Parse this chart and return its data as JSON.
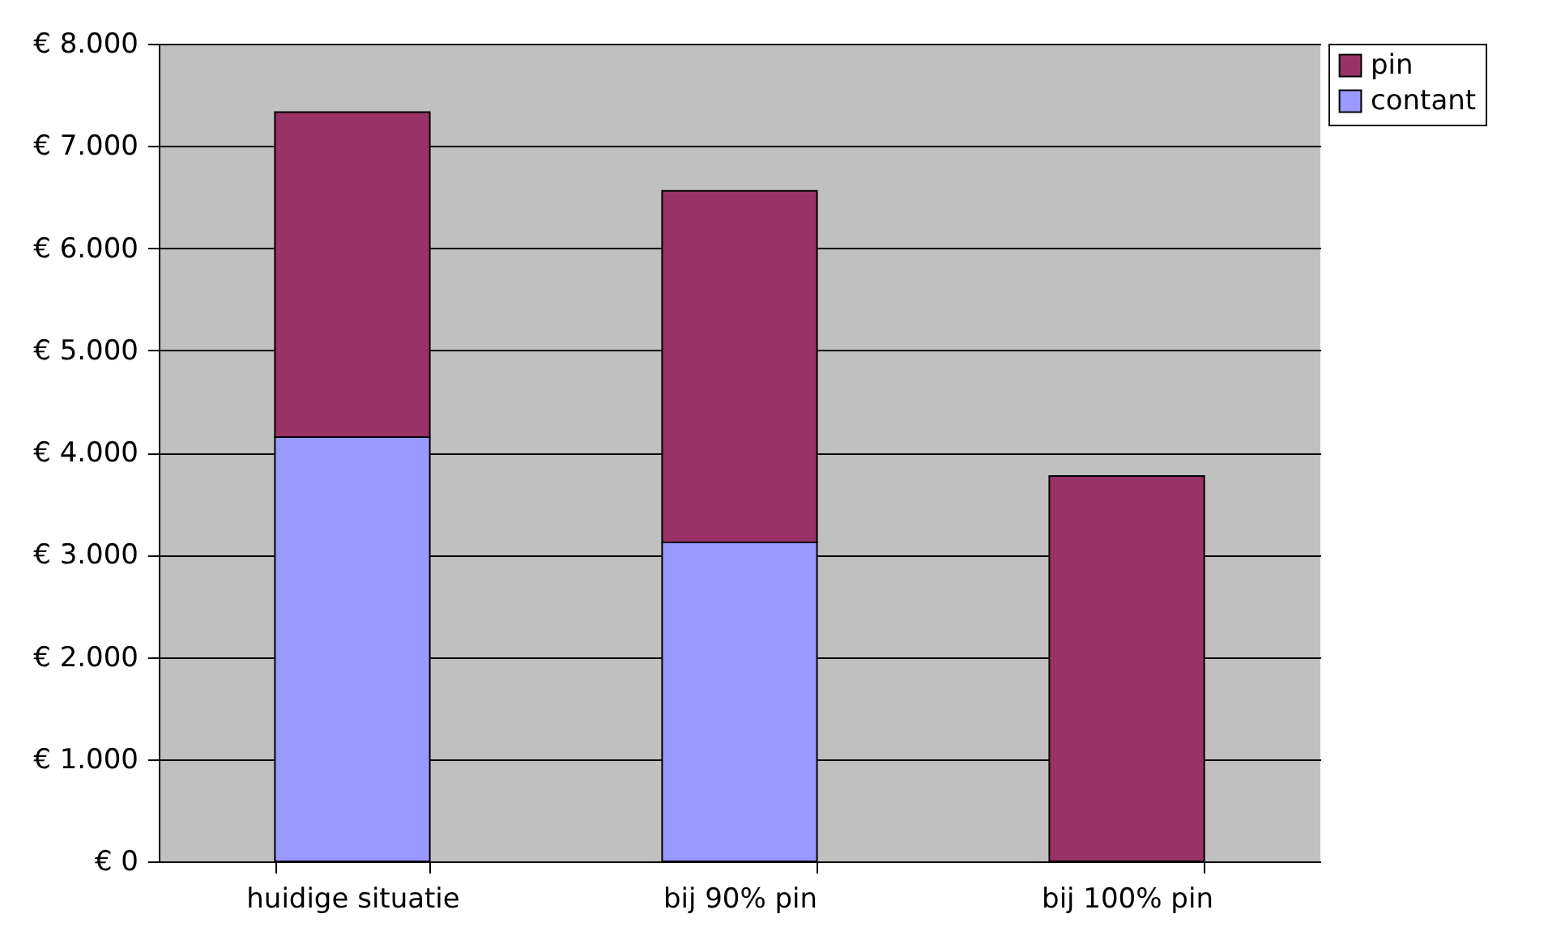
{
  "chart_data": {
    "type": "bar",
    "stacked": true,
    "categories": [
      "huidige situatie",
      "bij 90% pin",
      "bij 100% pin"
    ],
    "series": [
      {
        "name": "contant",
        "color": "#9999ff",
        "values": [
          4150,
          3120,
          null
        ]
      },
      {
        "name": "pin",
        "color": "#993366",
        "values": [
          3180,
          3440,
          3770
        ]
      }
    ],
    "ylim": [
      0,
      8000
    ],
    "yticks": [
      {
        "value": 0,
        "label": "€ 0"
      },
      {
        "value": 1000,
        "label": "€ 1.000"
      },
      {
        "value": 2000,
        "label": "€ 2.000"
      },
      {
        "value": 3000,
        "label": "€ 3.000"
      },
      {
        "value": 4000,
        "label": "€ 4.000"
      },
      {
        "value": 5000,
        "label": "€ 5.000"
      },
      {
        "value": 6000,
        "label": "€ 6.000"
      },
      {
        "value": 7000,
        "label": "€ 7.000"
      },
      {
        "value": 8000,
        "label": "€ 8.000"
      }
    ],
    "grid": "y",
    "legend": "right"
  }
}
